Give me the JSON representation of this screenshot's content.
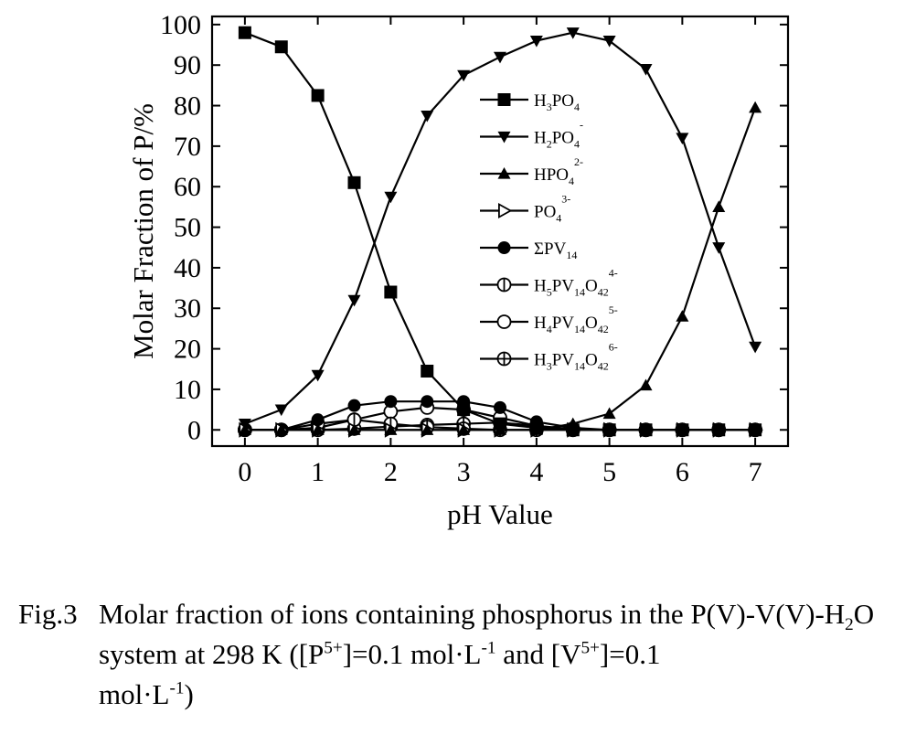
{
  "chart_data": {
    "type": "line",
    "xlabel": "pH Value",
    "ylabel": "Molar Fraction of P/%",
    "xlim": [
      -0.45,
      7.45
    ],
    "ylim": [
      -4,
      102
    ],
    "xticks": [
      0,
      1,
      2,
      3,
      4,
      5,
      6,
      7
    ],
    "yticks": [
      0,
      10,
      20,
      30,
      40,
      50,
      60,
      70,
      80,
      90,
      100
    ],
    "x": [
      0,
      0.5,
      1,
      1.5,
      2,
      2.5,
      3,
      3.5,
      4,
      4.5,
      5,
      5.5,
      6,
      6.5,
      7
    ],
    "grid": false,
    "legend_position": "upper-center",
    "series": [
      {
        "name": "H3PO4",
        "marker": "square-filled",
        "values": [
          98,
          94.5,
          82.5,
          61,
          34,
          14.5,
          5,
          1.5,
          0.5,
          0,
          0,
          0,
          0,
          0,
          0
        ]
      },
      {
        "name": "H2PO4-",
        "marker": "triangle-down-filled",
        "values": [
          1.5,
          5,
          13.5,
          32,
          57.5,
          77.5,
          87.5,
          92,
          96,
          98,
          96,
          89,
          72,
          45,
          20.5
        ]
      },
      {
        "name": "HPO4 2-",
        "marker": "triangle-up-filled",
        "values": [
          0,
          0,
          0,
          0,
          0,
          0,
          0,
          0,
          0,
          1.5,
          4,
          11,
          28,
          55,
          79.5
        ]
      },
      {
        "name": "PO4 3-",
        "marker": "triangle-right-open",
        "values": [
          0,
          0,
          0,
          0,
          0,
          0,
          0,
          0,
          0,
          0,
          0,
          0,
          0,
          0,
          0
        ]
      },
      {
        "name": "ΣPV14",
        "marker": "circle-filled",
        "values": [
          0,
          0,
          2.5,
          6,
          7,
          7,
          7,
          5.5,
          2,
          0.5,
          0,
          0,
          0,
          0,
          0
        ]
      },
      {
        "name": "H5PV14O42 4-",
        "marker": "circle-vline",
        "values": [
          0,
          0,
          1.5,
          2.5,
          1.5,
          0.7,
          0.3,
          0,
          0,
          0,
          0,
          0,
          0,
          0,
          0
        ]
      },
      {
        "name": "H4PV14O42 5-",
        "marker": "circle-open",
        "values": [
          0,
          0,
          0.5,
          2.5,
          4.5,
          5.5,
          5,
          3,
          1,
          0,
          0,
          0,
          0,
          0,
          0
        ]
      },
      {
        "name": "H3PV14O42 6-",
        "marker": "circle-cross",
        "values": [
          0,
          0,
          0,
          0.3,
          0.8,
          1.2,
          1.5,
          1.8,
          1,
          0.2,
          0,
          0,
          0,
          0,
          0
        ]
      }
    ]
  },
  "legend": [
    {
      "series": 0,
      "marker": "square-filled",
      "base": "H",
      "parts": [
        [
          "sub",
          "3"
        ],
        [
          "",
          "PO"
        ],
        [
          "sub",
          "4"
        ]
      ]
    },
    {
      "series": 1,
      "marker": "triangle-down-filled",
      "base": "H",
      "parts": [
        [
          "sub",
          "2"
        ],
        [
          "",
          "PO"
        ],
        [
          "sub",
          "4"
        ],
        [
          "sup",
          "-"
        ]
      ]
    },
    {
      "series": 2,
      "marker": "triangle-up-filled",
      "base": "HPO",
      "parts": [
        [
          "sub",
          "4"
        ],
        [
          "sup",
          "2-"
        ]
      ]
    },
    {
      "series": 3,
      "marker": "triangle-right-open",
      "base": "PO",
      "parts": [
        [
          "sub",
          "4"
        ],
        [
          "sup",
          "3-"
        ]
      ]
    },
    {
      "series": 4,
      "marker": "circle-filled",
      "base": "ΣPV",
      "parts": [
        [
          "sub",
          "14"
        ]
      ]
    },
    {
      "series": 5,
      "marker": "circle-vline",
      "base": "H",
      "parts": [
        [
          "sub",
          "5"
        ],
        [
          "",
          "PV"
        ],
        [
          "sub",
          "14"
        ],
        [
          "",
          "O"
        ],
        [
          "sub",
          "42"
        ],
        [
          "sup",
          "4-"
        ]
      ]
    },
    {
      "series": 6,
      "marker": "circle-open",
      "base": "H",
      "parts": [
        [
          "sub",
          "4"
        ],
        [
          "",
          "PV"
        ],
        [
          "sub",
          "14"
        ],
        [
          "",
          "O"
        ],
        [
          "sub",
          "42"
        ],
        [
          "sup",
          "5-"
        ]
      ]
    },
    {
      "series": 7,
      "marker": "circle-cross",
      "base": "H",
      "parts": [
        [
          "sub",
          "3"
        ],
        [
          "",
          "PV"
        ],
        [
          "sub",
          "14"
        ],
        [
          "",
          "O"
        ],
        [
          "sub",
          "42"
        ],
        [
          "sup",
          "6-"
        ]
      ]
    }
  ],
  "caption": {
    "label": "Fig.3",
    "t1": "Molar fraction of ions containing phosphorus in the P(V)-V(V)-H",
    "t1_sub": "2",
    "t2": "O system at 298 K ([P",
    "t2_sup": "5+",
    "t3": "]=0.1 mol·L",
    "t3_sup": "-1",
    "t4": " and [V",
    "t4_sup": "5+",
    "t5": "]=0.1",
    "t6": "mol·L",
    "t6_sup": "-1",
    "t7": ")"
  }
}
